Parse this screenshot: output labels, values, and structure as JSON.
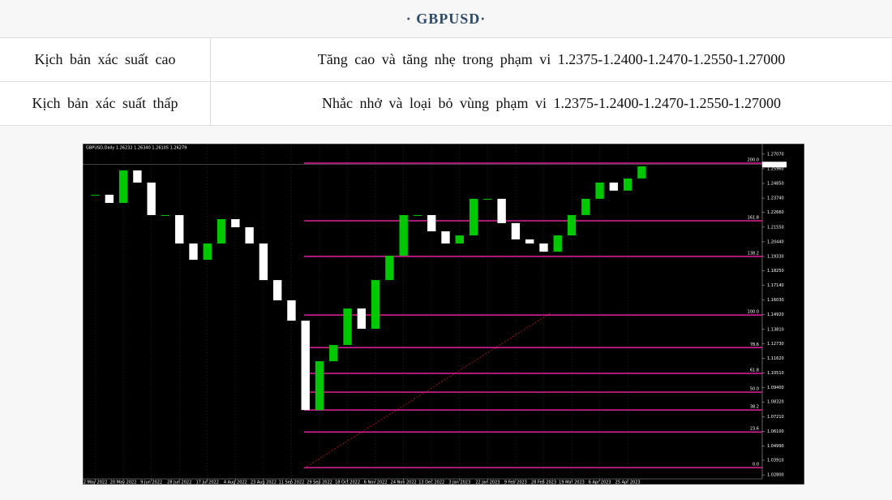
{
  "header": {
    "title": "· GBPUSD·"
  },
  "table": {
    "rows": [
      [
        "Kịch bản xác suất cao",
        "Tăng cao và tăng nhẹ trong phạm vi 1.2375-1.2400-1.2470-1.2550-1.27000"
      ],
      [
        "Kịch bản xác suất thấp",
        "Nhắc nhở và loại bỏ vùng phạm vi 1.2375-1.2400-1.2470-1.2550-1.27000"
      ]
    ]
  },
  "chart_data": {
    "type": "candlestick",
    "title": "GBPUSD,Daily  1.26232 1.26340 1.26105 1.26279",
    "current_price": {
      "value": 1.26279,
      "label": "1.26279"
    },
    "x": [
      0,
      1,
      2,
      3,
      4,
      5,
      6,
      7,
      8,
      9,
      10,
      11,
      12,
      13,
      14,
      15,
      16,
      17,
      18,
      19,
      20,
      21,
      22,
      23,
      24,
      25,
      26,
      27,
      28,
      29,
      30,
      31,
      32,
      33,
      34,
      35,
      36,
      37,
      38,
      39
    ],
    "close": [
      1.24,
      1.2338,
      1.2584,
      1.2492,
      1.2246,
      1.2246,
      1.2031,
      1.1908,
      1.2031,
      1.2215,
      1.2154,
      1.2031,
      1.1754,
      1.1601,
      1.1447,
      1.0771,
      1.114,
      1.1263,
      1.1539,
      1.1386,
      1.1754,
      1.1939,
      1.2246,
      1.2246,
      1.2123,
      1.2031,
      1.2092,
      1.2369,
      1.2369,
      1.2185,
      1.2062,
      1.2031,
      1.1969,
      1.2092,
      1.2246,
      1.2369,
      1.2492,
      1.2431,
      1.2523,
      1.2615
    ],
    "up_color": "#00c800",
    "down_color": "#ffffff",
    "xlim": [
      -0.9,
      47.6
    ],
    "xticks": [
      {
        "value": 0,
        "label": "2 May 2022"
      },
      {
        "value": 2,
        "label": "20 May 2022"
      },
      {
        "value": 4,
        "label": "9 Jun 2022"
      },
      {
        "value": 6,
        "label": "28 Jun 2022"
      },
      {
        "value": 8,
        "label": "17 Jul 2022"
      },
      {
        "value": 10,
        "label": "4 Aug 2022"
      },
      {
        "value": 12,
        "label": "23 Aug 2022"
      },
      {
        "value": 14,
        "label": "11 Sep 2022"
      },
      {
        "value": 16,
        "label": "29 Sep 2022"
      },
      {
        "value": 18,
        "label": "18 Oct 2022"
      },
      {
        "value": 20,
        "label": "6 Nov 2022"
      },
      {
        "value": 22,
        "label": "24 Nov 2022"
      },
      {
        "value": 24,
        "label": "13 Dec 2022"
      },
      {
        "value": 26,
        "label": "3 Jan 2023"
      },
      {
        "value": 28,
        "label": "22 Jan 2023"
      },
      {
        "value": 30,
        "label": "9 Feb 2023"
      },
      {
        "value": 32,
        "label": "28 Feb 2023"
      },
      {
        "value": 34,
        "label": "19 Mar 2023"
      },
      {
        "value": 36,
        "label": "6 Apr 2023"
      },
      {
        "value": 38,
        "label": "25 Apr 2023"
      }
    ],
    "ylim": [
      1.025,
      1.278
    ],
    "yticks": [
      {
        "value": 1.2707,
        "label": "1.27070"
      },
      {
        "value": 1.2596,
        "label": "1.25960"
      },
      {
        "value": 1.2485,
        "label": "1.24850"
      },
      {
        "value": 1.2374,
        "label": "1.23740"
      },
      {
        "value": 1.2266,
        "label": "1.22660"
      },
      {
        "value": 1.2155,
        "label": "1.21550"
      },
      {
        "value": 1.2044,
        "label": "1.20440"
      },
      {
        "value": 1.1933,
        "label": "1.19330"
      },
      {
        "value": 1.1825,
        "label": "1.18250"
      },
      {
        "value": 1.1714,
        "label": "1.17140"
      },
      {
        "value": 1.1603,
        "label": "1.16030"
      },
      {
        "value": 1.1492,
        "label": "1.14920"
      },
      {
        "value": 1.1381,
        "label": "1.13810"
      },
      {
        "value": 1.1273,
        "label": "1.12730"
      },
      {
        "value": 1.1162,
        "label": "1.11620"
      },
      {
        "value": 1.1051,
        "label": "1.10510"
      },
      {
        "value": 1.094,
        "label": "1.09400"
      },
      {
        "value": 1.0832,
        "label": "1.08320"
      },
      {
        "value": 1.0721,
        "label": "1.07210"
      },
      {
        "value": 1.061,
        "label": "1.06100"
      },
      {
        "value": 1.0499,
        "label": "1.04990"
      },
      {
        "value": 1.0391,
        "label": "1.03910"
      },
      {
        "value": 1.028,
        "label": "1.02800"
      }
    ],
    "fib_color": "#e0209a",
    "fib_levels": [
      {
        "value": 1.2639,
        "label": "200.0"
      },
      {
        "value": 1.2203,
        "label": "161.8"
      },
      {
        "value": 1.1933,
        "label": "138.2"
      },
      {
        "value": 1.149,
        "label": "100.0"
      },
      {
        "value": 1.1243,
        "label": "78.6"
      },
      {
        "value": 1.1048,
        "label": "61.8"
      },
      {
        "value": 1.0906,
        "label": "50.0"
      },
      {
        "value": 1.0771,
        "label": "38.2"
      },
      {
        "value": 1.0605,
        "label": "23.6"
      },
      {
        "value": 1.0335,
        "label": "0.0"
      }
    ]
  }
}
